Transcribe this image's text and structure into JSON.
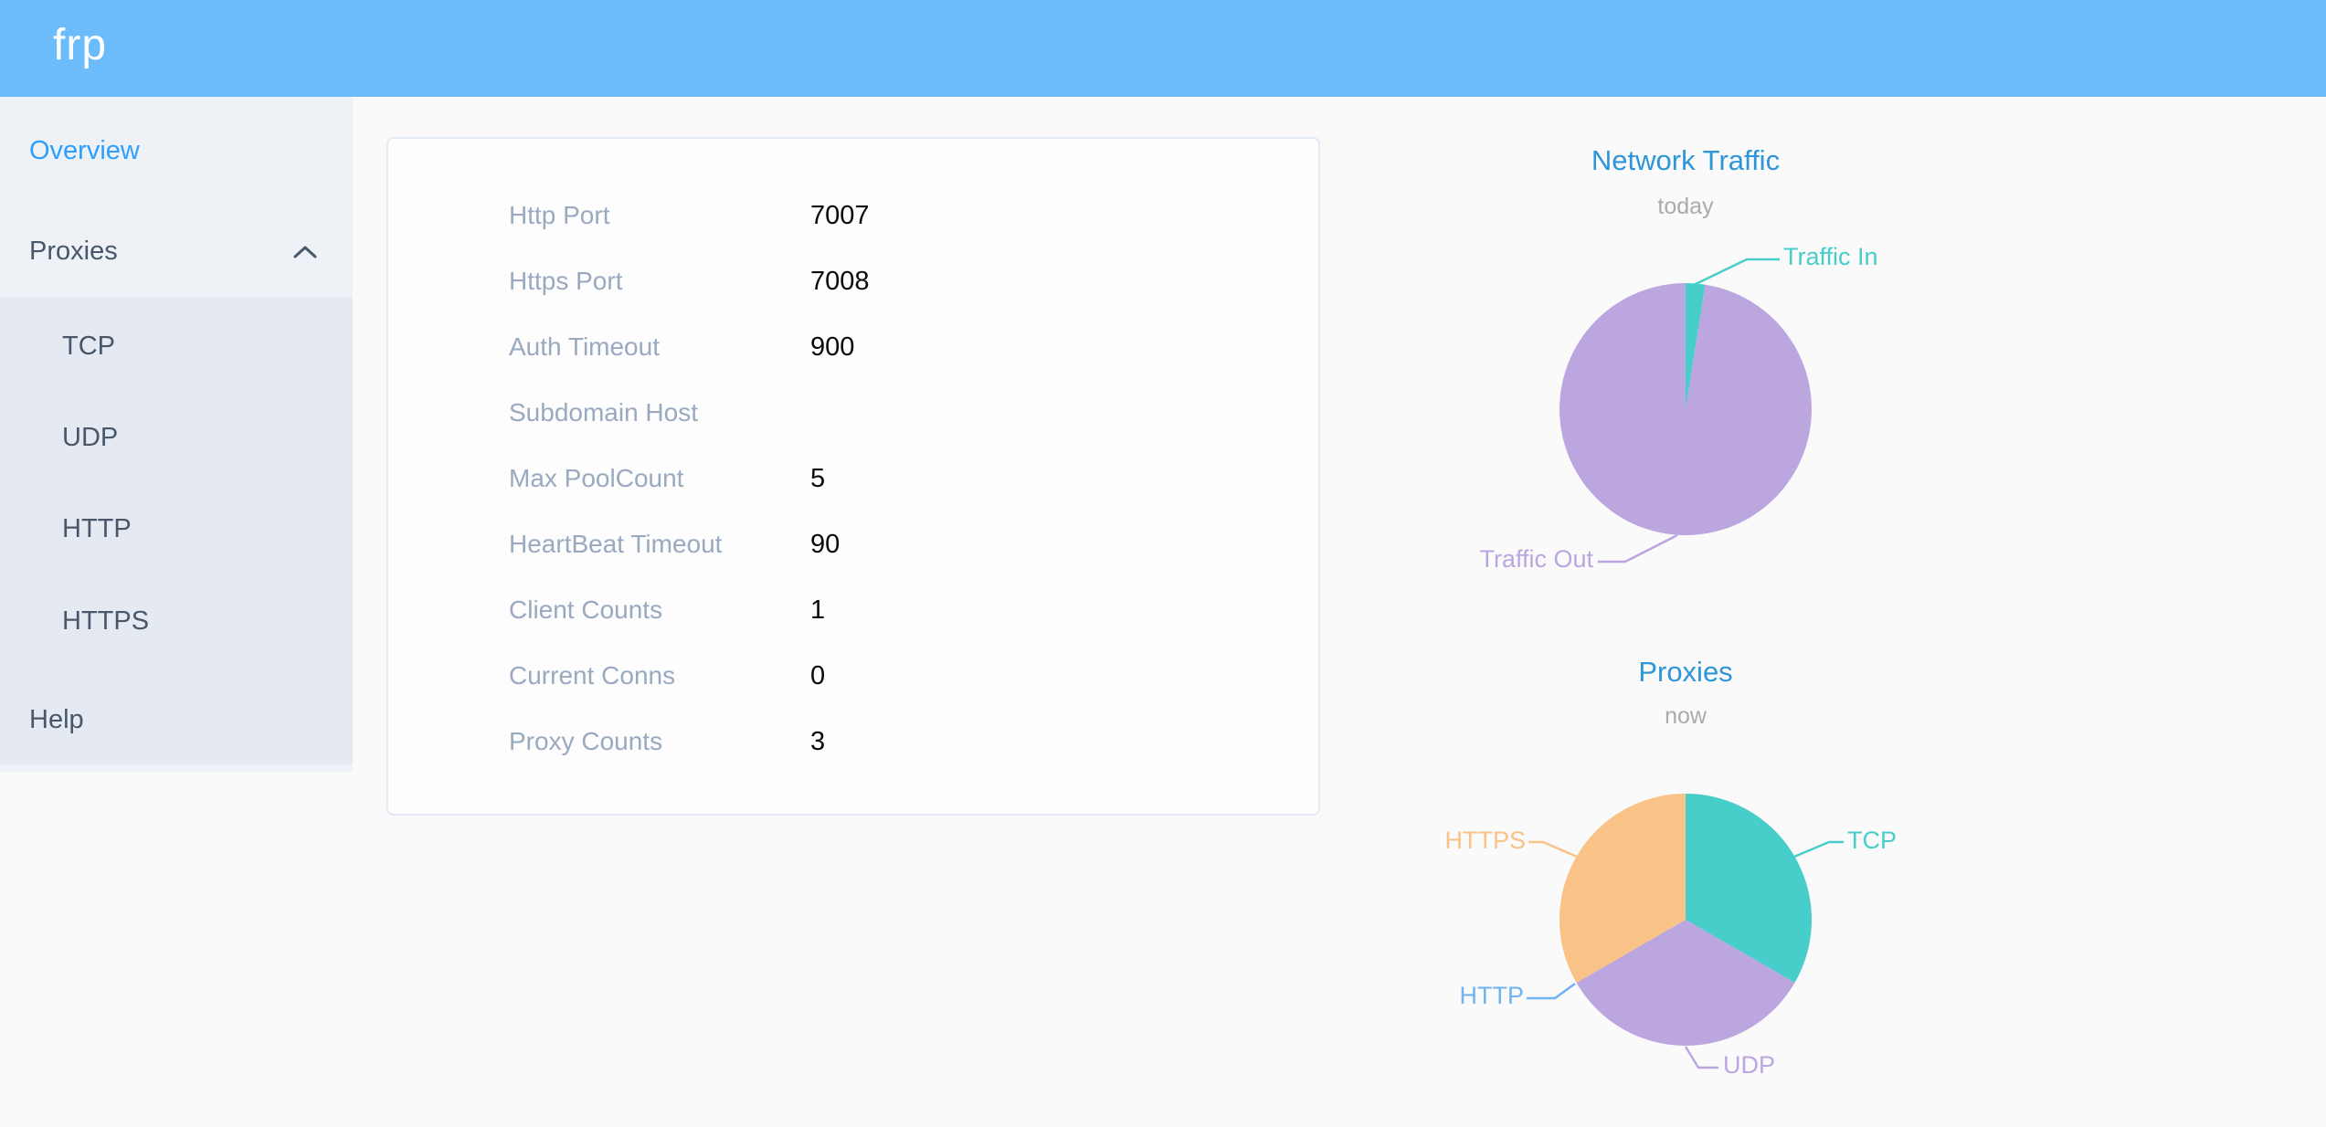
{
  "header": {
    "logo_text": "frp"
  },
  "sidebar": {
    "overview_label": "Overview",
    "proxies_label": "Proxies",
    "submenu": [
      "TCP",
      "UDP",
      "HTTP",
      "HTTPS"
    ],
    "help_label": "Help"
  },
  "overview_card": {
    "rows": [
      {
        "label": "Http Port",
        "value": "7007"
      },
      {
        "label": "Https Port",
        "value": "7008"
      },
      {
        "label": "Auth Timeout",
        "value": "900"
      },
      {
        "label": "Subdomain Host",
        "value": ""
      },
      {
        "label": "Max PoolCount",
        "value": "5"
      },
      {
        "label": "HeartBeat Timeout",
        "value": "90"
      },
      {
        "label": "Client Counts",
        "value": "1"
      },
      {
        "label": "Current Conns",
        "value": "0"
      },
      {
        "label": "Proxy Counts",
        "value": "3"
      }
    ]
  },
  "chart_data": [
    {
      "type": "pie",
      "title": "Network Traffic",
      "subtitle": "today",
      "legend_position": "outside-callout-labels",
      "slices": [
        {
          "name": "Traffic In",
          "value": 2.5,
          "unit": "percent",
          "color": "#47CDCA"
        },
        {
          "name": "Traffic Out",
          "value": 97.5,
          "unit": "percent",
          "color": "#BCA6DF"
        }
      ]
    },
    {
      "type": "pie",
      "title": "Proxies",
      "subtitle": "now",
      "legend_position": "outside-callout-labels",
      "slices": [
        {
          "name": "TCP",
          "value": 1,
          "color": "#47CDCA"
        },
        {
          "name": "UDP",
          "value": 1,
          "color": "#BCA6DF"
        },
        {
          "name": "HTTP",
          "value": 0,
          "color": "#6FB3F0"
        },
        {
          "name": "HTTPS",
          "value": 1,
          "color": "#F9C286"
        }
      ]
    }
  ],
  "colors": {
    "header_bg": "#6CBBFB",
    "page_bg": "#FAFAFB",
    "sidebar_bg": "#EEF1F6",
    "submenu_bg": "#E5E9F1",
    "menu_text": "#48576A",
    "active_menu_text": "#2D9FFF",
    "card_border": "#E4EAF6",
    "card_label": "#99A9BF",
    "card_value": "#0A0A0A",
    "chart_title": "#2E96D8",
    "chart_subtitle": "#AAAAAA"
  }
}
